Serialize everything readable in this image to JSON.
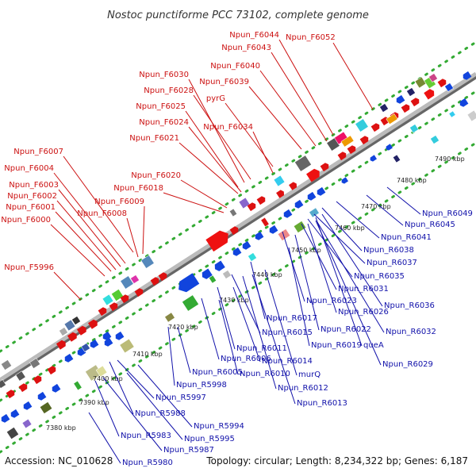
{
  "title": "Nostoc punctiforme PCC 73102, complete genome",
  "footer": {
    "accession": "Accession: NC_010628",
    "summary": "Topology: circular; Length: 8,234,322 bp; Genes: 6,187"
  },
  "colors": {
    "upper_label": "#cc1111",
    "lower_label": "#1111aa",
    "backbone": "#999999",
    "track_dots": "#33aa33"
  },
  "axis": {
    "ticks": [
      "7380 kbp",
      "7390 kbp",
      "7400 kbp",
      "7410 kbp",
      "7420 kbp",
      "7430 kbp",
      "7440 kbp",
      "7450 kbp",
      "7460 kbp",
      "7470 kbp",
      "7480 kbp",
      "7490 kbp"
    ]
  },
  "upper_labels": [
    "Npun_F6044",
    "Npun_F6052",
    "Npun_F6043",
    "Npun_F6040",
    "Npun_F6030",
    "Npun_F6039",
    "Npun_F6028",
    "pyrG",
    "Npun_F6025",
    "Npun_F6034",
    "Npun_F6024",
    "Npun_F6021",
    "Npun_F6007",
    "Npun_F6004",
    "Npun_F6020",
    "Npun_F6003",
    "Npun_F6018",
    "Npun_F6002",
    "Npun_F6009",
    "Npun_F6001",
    "Npun_F6008",
    "Npun_F6000",
    "Npun_F5996"
  ],
  "lower_labels": [
    "Npun_R6049",
    "Npun_R6045",
    "Npun_R6041",
    "Npun_R6038",
    "Npun_R6037",
    "Npun_R6035",
    "Npun_R6031",
    "Npun_R6036",
    "Npun_R6023",
    "Npun_R6026",
    "Npun_R6032",
    "Npun_R6017",
    "Npun_R6022",
    "Npun_R6015",
    "Npun_R6019",
    "queA",
    "Npun_R6011",
    "Npun_R6029",
    "Npun_R6006",
    "Npun_R6014",
    "Npun_R6005",
    "Npun_R6010",
    "murQ",
    "Npun_R5998",
    "Npun_R6012",
    "Npun_R5997",
    "Npun_R6013",
    "Npun_R5988",
    "Npun_R5994",
    "Npun_R5995",
    "Npun_R5983",
    "Npun_R5987",
    "Npun_R5980"
  ]
}
